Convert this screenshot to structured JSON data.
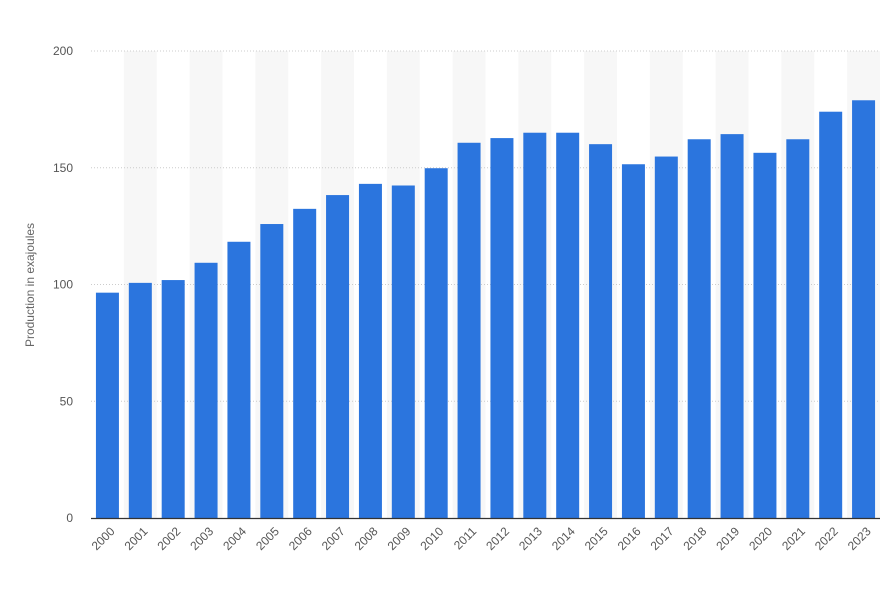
{
  "chart_data": {
    "type": "bar",
    "categories": [
      "2000",
      "2001",
      "2002",
      "2003",
      "2004",
      "2005",
      "2006",
      "2007",
      "2008",
      "2009",
      "2010",
      "2011",
      "2012",
      "2013",
      "2014",
      "2015",
      "2016",
      "2017",
      "2018",
      "2019",
      "2020",
      "2021",
      "2022",
      "2023"
    ],
    "values": [
      96.5,
      100.7,
      101.9,
      109.3,
      118.3,
      125.9,
      132.4,
      138.3,
      143.1,
      142.4,
      149.8,
      160.7,
      162.7,
      165.0,
      165.0,
      160.1,
      151.5,
      154.8,
      162.2,
      164.4,
      156.4,
      162.2,
      174.0,
      178.9
    ],
    "title": "",
    "xlabel": "",
    "ylabel": "Production in exajoules",
    "ylim": [
      0,
      200
    ],
    "yticks": [
      0,
      50,
      100,
      150,
      200
    ],
    "grid": true,
    "colors": {
      "bar": "#2b75de",
      "band": "#f7f7f7",
      "grid": "#cccccc",
      "axis": "#333333",
      "tick_text": "#555555"
    }
  }
}
